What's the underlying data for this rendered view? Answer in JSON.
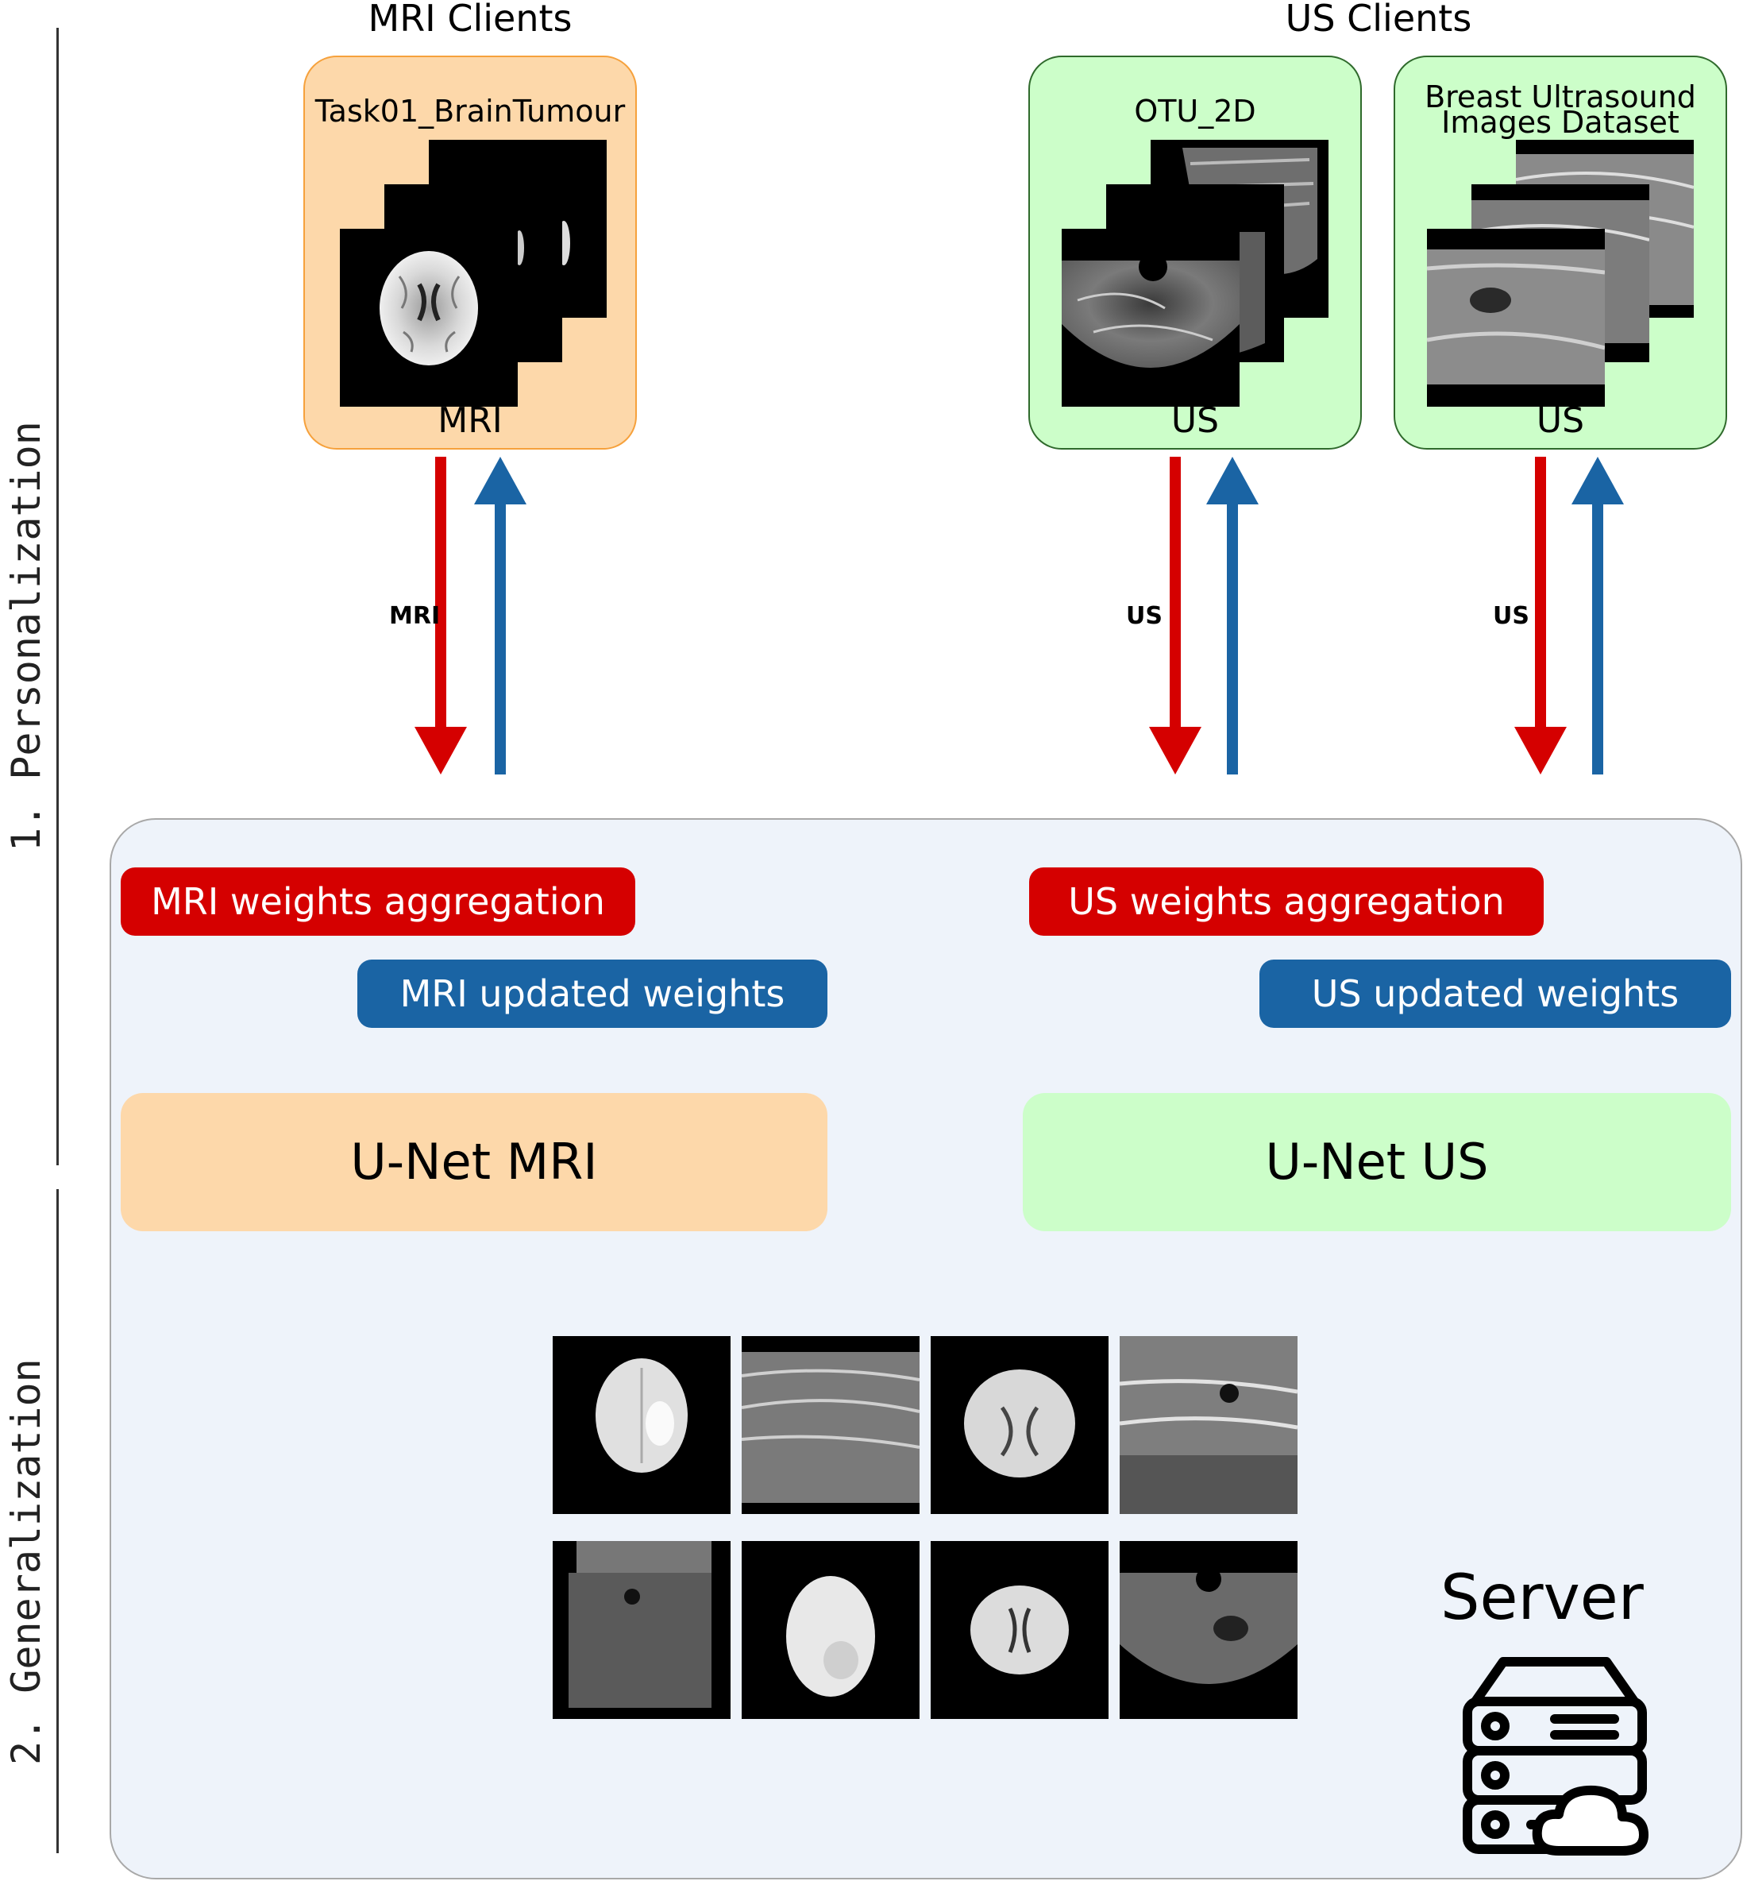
{
  "stages": {
    "stage1": "1. Personalization",
    "stage2": "2. Generalization"
  },
  "clients": {
    "mri_title": "MRI Clients",
    "us_title": "US Clients",
    "mri_client": {
      "dataset": "Task01_BrainTumour",
      "modality": "MRI"
    },
    "us_client_1": {
      "dataset": "OTU_2D",
      "modality": "US"
    },
    "us_client_2": {
      "dataset_line1": "Breast Ultrasound",
      "dataset_line2": "Images Dataset",
      "modality": "US"
    }
  },
  "arrows": {
    "mri_label": "MRI",
    "us1_label": "US",
    "us2_label": "US",
    "upload_color": "#d50000",
    "download_color": "#1a64a4"
  },
  "server": {
    "mri_aggregation": "MRI weights aggregation",
    "mri_updated": "MRI updated weights",
    "us_aggregation": "US weights aggregation",
    "us_updated": "US updated weights",
    "unet_mri": "U-Net MRI",
    "unet_us": "U-Net US",
    "server_label": "Server"
  },
  "icons": {
    "server": "server-cloud-icon"
  }
}
